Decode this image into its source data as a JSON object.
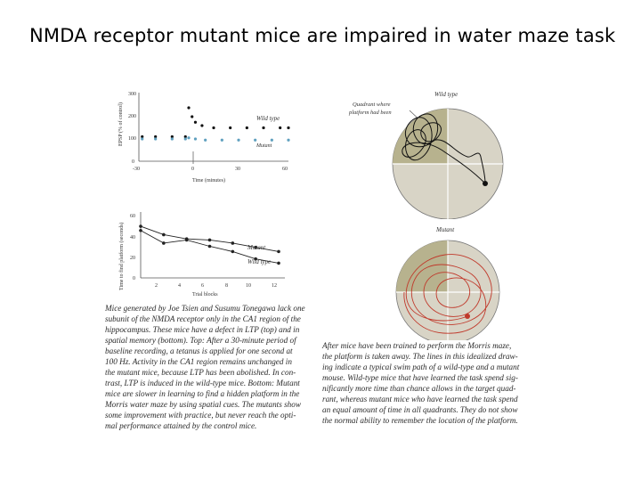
{
  "slide": {
    "title": "NMDA receptor mutant mice are impaired in water maze task"
  },
  "ltp_plot": {
    "ylabel": "EPSP (% of control)",
    "xlabel": "Time (minutes)",
    "y_ticks": [
      "300",
      "200",
      "100",
      "0"
    ],
    "x_ticks": [
      "-30",
      "0",
      "30",
      "60"
    ],
    "label_wild": "Wild type",
    "label_mutant": "Mutant"
  },
  "learning_plot": {
    "ylabel": "Time to find platform (seconds)",
    "xlabel": "Trial blocks",
    "y_ticks": [
      "60",
      "40",
      "20",
      "0"
    ],
    "x_ticks": [
      "2",
      "4",
      "6",
      "8",
      "10",
      "12"
    ],
    "label_mutant": "Mutant",
    "label_wild": "Wild type"
  },
  "chart_data": [
    {
      "type": "scatter",
      "xlabel": "Time (minutes)",
      "ylabel": "EPSP (% of control)",
      "xlim": [
        -30,
        60
      ],
      "ylim": [
        0,
        300
      ],
      "series": [
        {
          "name": "Wild type",
          "x": [
            -28,
            -20,
            -10,
            -2,
            0,
            2,
            4,
            8,
            15,
            25,
            35,
            45,
            55,
            60
          ],
          "y": [
            110,
            110,
            110,
            110,
            240,
            200,
            175,
            160,
            150,
            150,
            150,
            150,
            150,
            150
          ]
        },
        {
          "name": "Mutant",
          "x": [
            -28,
            -20,
            -10,
            -2,
            0,
            4,
            10,
            20,
            30,
            40,
            50,
            60
          ],
          "y": [
            100,
            100,
            100,
            100,
            105,
            100,
            95,
            95,
            95,
            95,
            95,
            95
          ]
        }
      ]
    },
    {
      "type": "line",
      "xlabel": "Trial blocks",
      "ylabel": "Time to find platform (seconds)",
      "xlim": [
        0,
        12
      ],
      "ylim": [
        0,
        60
      ],
      "series": [
        {
          "name": "Mutant",
          "x": [
            0,
            2,
            4,
            6,
            8,
            10,
            12
          ],
          "y": [
            49,
            41,
            37,
            36,
            33,
            29,
            25
          ]
        },
        {
          "name": "Wild type",
          "x": [
            0,
            2,
            4,
            6,
            8,
            10,
            12
          ],
          "y": [
            45,
            33,
            36,
            30,
            25,
            18,
            14
          ]
        }
      ]
    }
  ],
  "maze": {
    "wild_label": "Wild type",
    "quadrant_note_1": "Quadrant where",
    "quadrant_note_2": "platform had been",
    "mutant_label": "Mutant"
  },
  "caption_left": [
    "Mice generated by Joe Tsien and Susumu Tonegawa lack one",
    "subunit of the NMDA receptor only in the CA1 region of the",
    "hippocampus. These mice have a defect in LTP (top) and in",
    "spatial memory (bottom). Top: After a 30-minute period of",
    "baseline recording, a tetanus is applied for one second at",
    "100 Hz. Activity in the CA1 region remains unchanged in",
    "the mutant mice, because LTP has been abolished. In con-",
    "trast, LTP is induced in the wild-type mice. Bottom: Mutant",
    "mice are slower in learning to find a hidden platform in the",
    "Morris water maze by using spatial cues. The mutants show",
    "some improvement with practice, but never reach the opti-",
    "mal performance attained by the control mice."
  ],
  "caption_right": [
    "After mice have been trained to perform the Morris maze,",
    "the platform is taken away. The lines in this idealized draw-",
    "ing indicate a typical swim path of a wild-type and a mutant",
    "mouse. Wild-type mice that have learned the task spend sig-",
    "nificantly more time than chance allows in the target quad-",
    "rant, whereas mutant mice who have learned the task spend",
    "an equal amount of time in all quadrants. They do not show",
    "the normal ability to remember the location of the platform."
  ]
}
